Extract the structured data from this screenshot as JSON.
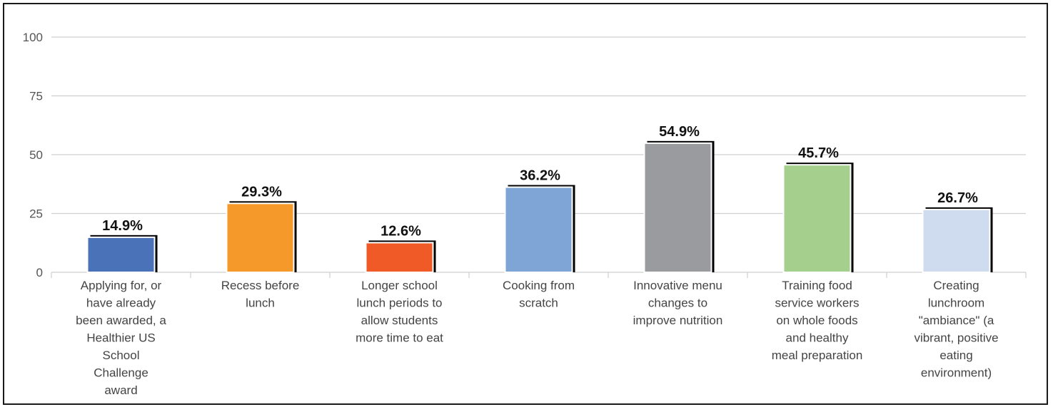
{
  "chart_data": {
    "type": "bar",
    "title": "",
    "xlabel": "",
    "ylabel": "",
    "ylim": [
      0,
      100
    ],
    "yticks": [
      0,
      25,
      50,
      75,
      100
    ],
    "grid": true,
    "categories": [
      [
        "Applying for, or",
        "have already",
        "been awarded, a",
        "Healthier US",
        "School",
        "Challenge",
        "award"
      ],
      [
        "Recess before",
        "lunch"
      ],
      [
        "Longer school",
        "lunch periods to",
        "allow students",
        "more time to eat"
      ],
      [
        "Cooking from",
        "scratch"
      ],
      [
        "Innovative menu",
        "changes to",
        "improve nutrition"
      ],
      [
        "Training food",
        "service workers",
        "on whole foods",
        "and healthy",
        "meal preparation"
      ],
      [
        "Creating",
        "lunchroom",
        "\"ambiance\" (a",
        "vibrant, positive",
        "eating",
        "environment)"
      ]
    ],
    "values": [
      14.9,
      29.3,
      12.6,
      36.2,
      54.9,
      45.7,
      26.7
    ],
    "data_labels": [
      "14.9%",
      "29.3%",
      "12.6%",
      "36.2%",
      "54.9%",
      "45.7%",
      "26.7%"
    ],
    "colors": [
      "#4a72b8",
      "#f5992a",
      "#f05a26",
      "#7ea5d6",
      "#999b9e",
      "#a4cf8d",
      "#cfdcf0"
    ],
    "gridline_color": "#cfcfcf",
    "bar_shadow_color": "#000000"
  }
}
